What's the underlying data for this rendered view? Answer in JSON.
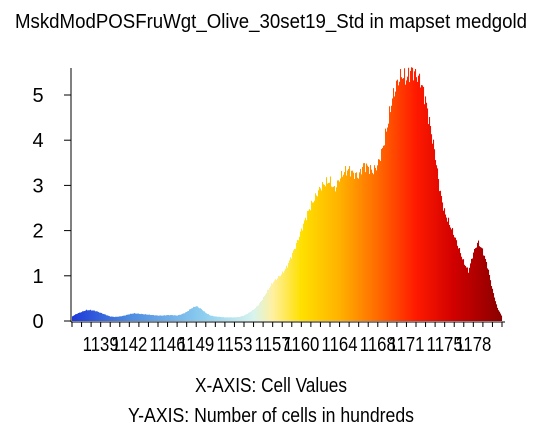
{
  "chart_data": {
    "type": "bar",
    "title": "MskdModPOSFruWgt_Olive_30set19_Std in mapset medgold",
    "xlabel": "X-AXIS: Cell Values",
    "ylabel": "Y-AXIS: Number of cells in hundreds",
    "xlim": [
      1136,
      1181
    ],
    "ylim": [
      0,
      5.5
    ],
    "yticks": [
      0,
      1,
      2,
      3,
      4,
      5
    ],
    "xtick_labels": [
      "1139",
      "1142",
      "1146",
      "1149",
      "1153",
      "1157",
      "1160",
      "1164",
      "1168",
      "1171",
      "1175",
      "1178"
    ],
    "grid": false,
    "histogram_profile": [
      [
        1136.0,
        0.1
      ],
      [
        1136.5,
        0.16
      ],
      [
        1137.0,
        0.2
      ],
      [
        1137.5,
        0.24
      ],
      [
        1138.0,
        0.24
      ],
      [
        1138.5,
        0.22
      ],
      [
        1139.0,
        0.18
      ],
      [
        1139.5,
        0.14
      ],
      [
        1140.0,
        0.1
      ],
      [
        1140.5,
        0.09
      ],
      [
        1141.0,
        0.1
      ],
      [
        1141.5,
        0.12
      ],
      [
        1142.0,
        0.15
      ],
      [
        1142.5,
        0.17
      ],
      [
        1143.0,
        0.16
      ],
      [
        1143.5,
        0.15
      ],
      [
        1144.0,
        0.14
      ],
      [
        1144.5,
        0.13
      ],
      [
        1145.0,
        0.12
      ],
      [
        1145.5,
        0.12
      ],
      [
        1146.0,
        0.13
      ],
      [
        1146.5,
        0.13
      ],
      [
        1147.0,
        0.12
      ],
      [
        1147.5,
        0.15
      ],
      [
        1148.0,
        0.2
      ],
      [
        1148.5,
        0.28
      ],
      [
        1149.0,
        0.33
      ],
      [
        1149.5,
        0.27
      ],
      [
        1150.0,
        0.18
      ],
      [
        1150.5,
        0.12
      ],
      [
        1151.0,
        0.1
      ],
      [
        1151.5,
        0.09
      ],
      [
        1152.0,
        0.08
      ],
      [
        1152.5,
        0.08
      ],
      [
        1153.0,
        0.08
      ],
      [
        1153.5,
        0.09
      ],
      [
        1154.0,
        0.12
      ],
      [
        1154.5,
        0.18
      ],
      [
        1155.0,
        0.25
      ],
      [
        1155.5,
        0.35
      ],
      [
        1156.0,
        0.5
      ],
      [
        1156.5,
        0.68
      ],
      [
        1157.0,
        0.85
      ],
      [
        1157.5,
        0.95
      ],
      [
        1158.0,
        1.05
      ],
      [
        1158.5,
        1.2
      ],
      [
        1159.0,
        1.45
      ],
      [
        1159.5,
        1.7
      ],
      [
        1160.0,
        2.0
      ],
      [
        1160.5,
        2.3
      ],
      [
        1161.0,
        2.55
      ],
      [
        1161.5,
        2.75
      ],
      [
        1162.0,
        2.95
      ],
      [
        1162.5,
        3.05
      ],
      [
        1163.0,
        3.1
      ],
      [
        1163.5,
        2.9
      ],
      [
        1164.0,
        3.15
      ],
      [
        1164.5,
        3.3
      ],
      [
        1165.0,
        3.35
      ],
      [
        1165.5,
        3.25
      ],
      [
        1166.0,
        3.2
      ],
      [
        1166.5,
        3.45
      ],
      [
        1167.0,
        3.4
      ],
      [
        1167.5,
        3.3
      ],
      [
        1168.0,
        3.45
      ],
      [
        1168.5,
        3.8
      ],
      [
        1169.0,
        4.3
      ],
      [
        1169.5,
        4.9
      ],
      [
        1170.0,
        5.25
      ],
      [
        1170.5,
        5.45
      ],
      [
        1171.0,
        5.35
      ],
      [
        1171.5,
        5.55
      ],
      [
        1172.0,
        5.45
      ],
      [
        1172.5,
        5.3
      ],
      [
        1173.0,
        4.9
      ],
      [
        1173.5,
        4.3
      ],
      [
        1174.0,
        3.7
      ],
      [
        1174.5,
        2.9
      ],
      [
        1175.0,
        2.4
      ],
      [
        1175.5,
        2.15
      ],
      [
        1176.0,
        1.9
      ],
      [
        1176.5,
        1.6
      ],
      [
        1177.0,
        1.3
      ],
      [
        1177.5,
        1.1
      ],
      [
        1178.0,
        1.5
      ],
      [
        1178.5,
        1.75
      ],
      [
        1179.0,
        1.55
      ],
      [
        1179.5,
        1.2
      ],
      [
        1180.0,
        0.7
      ],
      [
        1180.5,
        0.3
      ],
      [
        1181.0,
        0.1
      ]
    ],
    "color_ramp": [
      [
        1136,
        "#1e3ad8"
      ],
      [
        1142,
        "#4c8be0"
      ],
      [
        1150,
        "#8fd0f0"
      ],
      [
        1155,
        "#d8f4ee"
      ],
      [
        1157,
        "#fff0a0"
      ],
      [
        1160,
        "#ffe000"
      ],
      [
        1164,
        "#ffb200"
      ],
      [
        1168,
        "#ff6a00"
      ],
      [
        1172,
        "#ff1a00"
      ],
      [
        1176,
        "#d00000"
      ],
      [
        1181,
        "#8a0000"
      ]
    ]
  }
}
